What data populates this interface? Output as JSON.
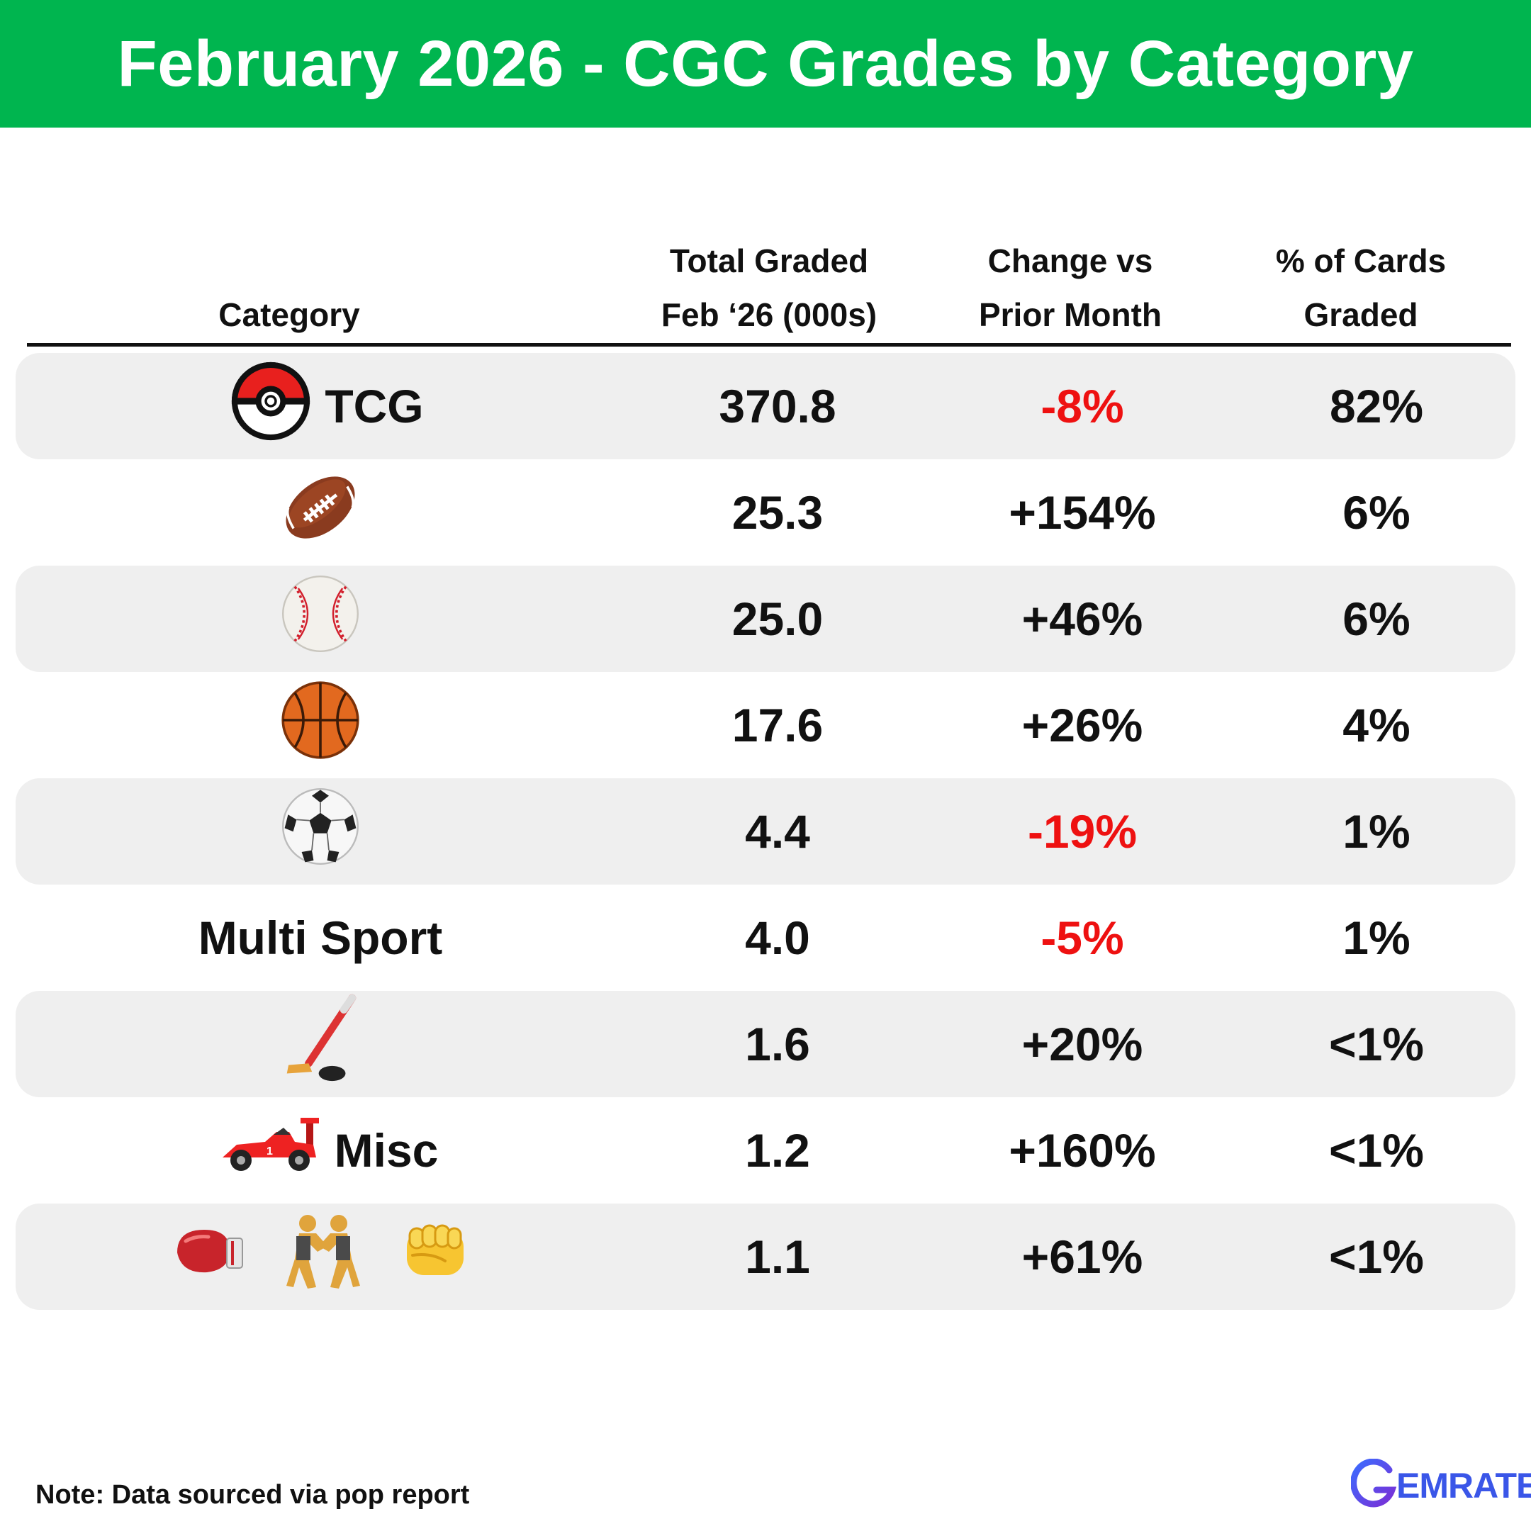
{
  "chart_data": {
    "type": "table",
    "title": "February 2026 - CGC Grades by Category",
    "columns": [
      {
        "key": "category",
        "label_lines": [
          "Category"
        ]
      },
      {
        "key": "total",
        "label_lines": [
          "Total Graded",
          "Feb ‘26 (000s)"
        ]
      },
      {
        "key": "change",
        "label_lines": [
          "Change vs",
          "Prior Month"
        ]
      },
      {
        "key": "pct",
        "label_lines": [
          "% of Cards",
          "Graded"
        ]
      }
    ],
    "rows": [
      {
        "category": "TCG",
        "icons": [
          "pokeball-icon"
        ],
        "total": "370.8",
        "total_value": 370.8,
        "change": "-8%",
        "change_value": -8,
        "pct": "82%"
      },
      {
        "category": "",
        "icons": [
          "football-icon"
        ],
        "total": "25.3",
        "total_value": 25.3,
        "change": "+154%",
        "change_value": 154,
        "pct": "6%"
      },
      {
        "category": "",
        "icons": [
          "baseball-icon"
        ],
        "total": "25.0",
        "total_value": 25.0,
        "change": "+46%",
        "change_value": 46,
        "pct": "6%"
      },
      {
        "category": "",
        "icons": [
          "basketball-icon"
        ],
        "total": "17.6",
        "total_value": 17.6,
        "change": "+26%",
        "change_value": 26,
        "pct": "4%"
      },
      {
        "category": "",
        "icons": [
          "soccer-ball-icon"
        ],
        "total": "4.4",
        "total_value": 4.4,
        "change": "-19%",
        "change_value": -19,
        "pct": "1%"
      },
      {
        "category": "Multi Sport",
        "icons": [],
        "total": "4.0",
        "total_value": 4.0,
        "change": "-5%",
        "change_value": -5,
        "pct": "1%"
      },
      {
        "category": "",
        "icons": [
          "hockey-stick-icon"
        ],
        "total": "1.6",
        "total_value": 1.6,
        "change": "+20%",
        "change_value": 20,
        "pct": "<1%"
      },
      {
        "category": "Misc",
        "icons": [
          "race-car-icon"
        ],
        "total": "1.2",
        "total_value": 1.2,
        "change": "+160%",
        "change_value": 160,
        "pct": "<1%"
      },
      {
        "category": "",
        "icons": [
          "boxing-glove-icon",
          "wrestlers-icon",
          "fist-icon"
        ],
        "total": "1.1",
        "total_value": 1.1,
        "change": "+61%",
        "change_value": 61,
        "pct": "<1%"
      }
    ]
  },
  "footer": {
    "note": "Note: Data sourced via pop report",
    "logo_text": "EMRATE",
    "logo_icon": "gemrate-g-logo-icon"
  },
  "colors": {
    "banner": "#00b54f",
    "negative": "#ee1111",
    "row_shade": "#efefef",
    "logo": "#3a56e8"
  }
}
